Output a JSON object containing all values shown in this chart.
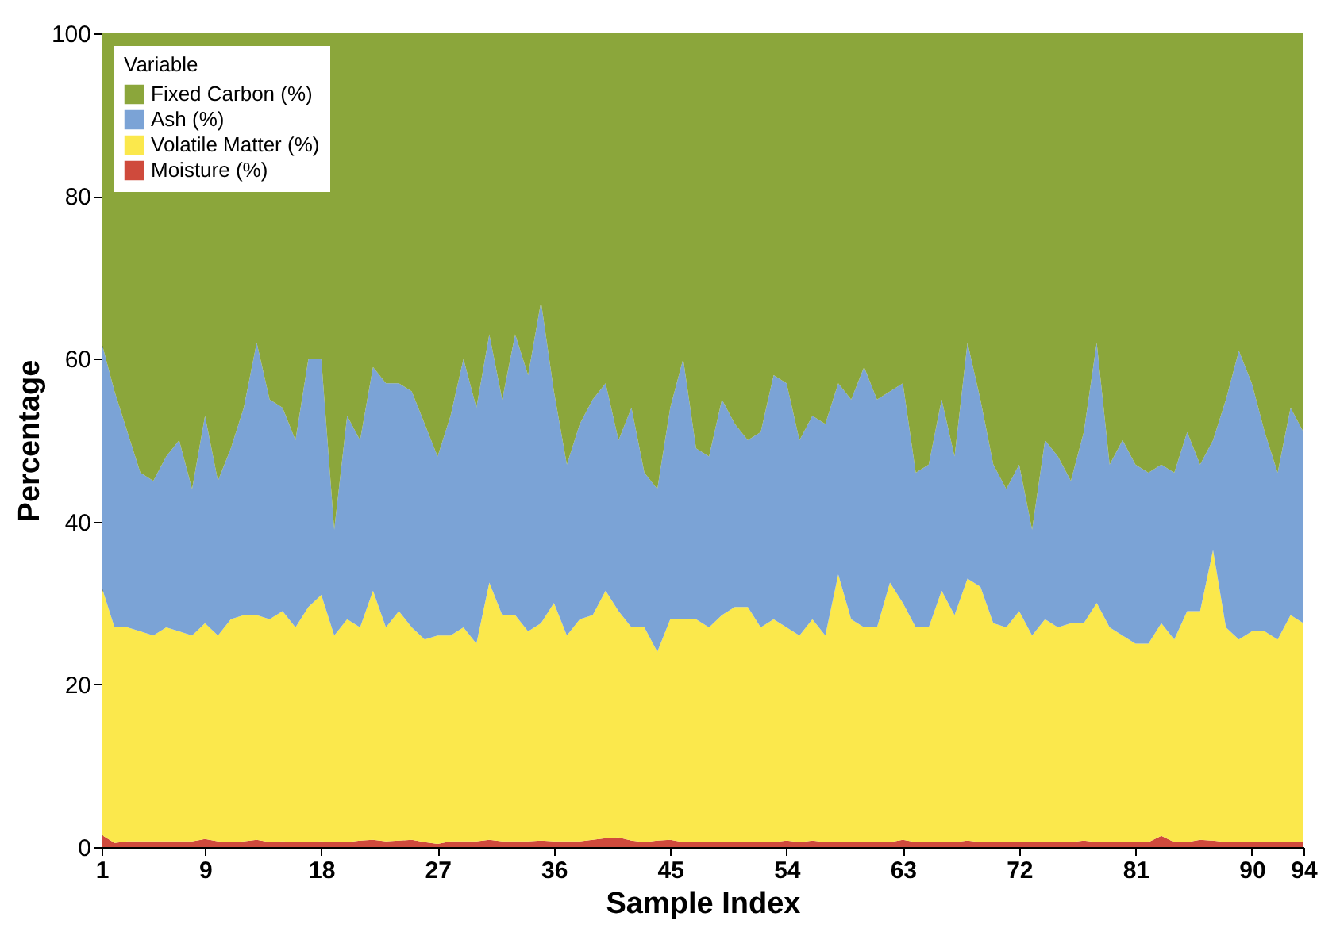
{
  "chart_data": {
    "type": "area",
    "stacked": true,
    "xlabel": "Sample Index",
    "ylabel": "Percentage",
    "legend_title": "Variable",
    "legend": "top left",
    "x": [
      1,
      2,
      3,
      4,
      5,
      6,
      7,
      8,
      9,
      10,
      11,
      12,
      13,
      14,
      15,
      16,
      17,
      18,
      19,
      20,
      21,
      22,
      23,
      24,
      25,
      26,
      27,
      28,
      29,
      30,
      31,
      32,
      33,
      34,
      35,
      36,
      37,
      38,
      39,
      40,
      41,
      42,
      43,
      44,
      45,
      46,
      47,
      48,
      49,
      50,
      51,
      52,
      53,
      54,
      55,
      56,
      57,
      58,
      59,
      60,
      61,
      62,
      63,
      64,
      65,
      66,
      67,
      68,
      69,
      70,
      71,
      72,
      73,
      74,
      75,
      76,
      77,
      78,
      79,
      80,
      81,
      82,
      83,
      84,
      85,
      86,
      87,
      88,
      89,
      90,
      91,
      92,
      93,
      94
    ],
    "xlim": [
      1,
      94
    ],
    "xticks": [
      1,
      9,
      18,
      27,
      36,
      45,
      54,
      63,
      72,
      81,
      90,
      94
    ],
    "ylim": [
      0,
      100
    ],
    "yticks": [
      0,
      20,
      40,
      60,
      80,
      100
    ],
    "series": [
      {
        "name": "Moisture (%)",
        "color": "#cf4a3c",
        "values": [
          1.5,
          0.5,
          0.7,
          0.7,
          0.7,
          0.7,
          0.7,
          0.7,
          1.0,
          0.7,
          0.6,
          0.7,
          0.9,
          0.6,
          0.7,
          0.6,
          0.6,
          0.7,
          0.6,
          0.6,
          0.8,
          0.9,
          0.7,
          0.8,
          0.9,
          0.6,
          0.4,
          0.7,
          0.7,
          0.7,
          0.9,
          0.7,
          0.7,
          0.7,
          0.8,
          0.7,
          0.7,
          0.7,
          0.9,
          1.1,
          1.2,
          0.8,
          0.6,
          0.8,
          0.9,
          0.6,
          0.6,
          0.6,
          0.6,
          0.6,
          0.6,
          0.6,
          0.6,
          0.8,
          0.6,
          0.8,
          0.6,
          0.6,
          0.6,
          0.6,
          0.6,
          0.6,
          0.9,
          0.6,
          0.6,
          0.6,
          0.6,
          0.8,
          0.6,
          0.6,
          0.6,
          0.6,
          0.6,
          0.6,
          0.6,
          0.6,
          0.8,
          0.6,
          0.6,
          0.6,
          0.6,
          0.6,
          1.4,
          0.6,
          0.6,
          0.9,
          0.8,
          0.6,
          0.6,
          0.6,
          0.6,
          0.6,
          0.6,
          0.6
        ]
      },
      {
        "name": "Volatile Matter (%)",
        "color": "#fbe84c",
        "values": [
          30.5,
          26.5,
          26.3,
          25.8,
          25.3,
          26.3,
          25.8,
          25.3,
          26.5,
          25.3,
          27.4,
          27.8,
          27.6,
          27.4,
          28.3,
          26.4,
          28.9,
          30.3,
          25.4,
          27.4,
          26.2,
          30.6,
          26.3,
          28.2,
          26.1,
          24.9,
          25.6,
          25.3,
          26.3,
          24.3,
          31.6,
          27.8,
          27.8,
          25.8,
          26.7,
          29.3,
          25.3,
          27.3,
          27.6,
          30.4,
          27.8,
          26.2,
          26.4,
          23.2,
          27.1,
          27.4,
          27.4,
          26.4,
          27.9,
          28.9,
          28.9,
          26.4,
          27.4,
          26.2,
          25.4,
          27.2,
          25.4,
          32.9,
          27.4,
          26.4,
          26.4,
          31.9,
          29.1,
          26.4,
          26.4,
          30.9,
          27.9,
          32.2,
          31.4,
          26.9,
          26.4,
          28.4,
          25.4,
          27.4,
          26.4,
          26.9,
          26.7,
          29.4,
          26.4,
          25.4,
          24.4,
          24.4,
          26.1,
          24.9,
          28.4,
          28.1,
          35.7,
          26.4,
          24.9,
          25.9,
          25.9,
          24.9,
          27.9,
          26.9
        ]
      },
      {
        "name": "Ash (%)",
        "color": "#7ba3d6",
        "values": [
          30,
          29,
          24,
          19.5,
          19,
          21,
          23.5,
          18,
          25.5,
          19,
          21,
          25.5,
          33.5,
          27,
          25,
          23,
          30.5,
          29,
          13,
          25,
          23,
          27.5,
          30,
          28,
          29,
          26.5,
          22,
          27,
          33,
          29,
          30.5,
          26.5,
          34.5,
          31.5,
          39.5,
          26,
          21,
          24,
          26.5,
          25.5,
          21,
          27,
          19,
          20,
          26,
          32,
          21,
          21,
          26.5,
          22.5,
          20.5,
          24,
          30,
          30,
          24,
          25,
          26,
          23.5,
          27,
          32,
          28,
          23.5,
          27,
          19,
          20,
          23.5,
          19.5,
          29,
          23,
          19.5,
          17,
          18,
          13,
          22,
          21,
          17.5,
          23.5,
          32,
          20,
          24,
          22,
          21,
          19.5,
          20.5,
          22,
          18,
          13.5,
          28,
          35.5,
          30.5,
          24.5,
          20.5,
          25.5,
          23.5
        ]
      },
      {
        "name": "Fixed Carbon (%)",
        "color": "#8ba63b",
        "values": [
          38,
          44,
          49,
          54,
          55,
          52,
          50,
          56,
          47,
          55,
          51,
          46,
          38,
          45,
          46,
          50,
          40,
          40,
          61,
          47,
          50,
          41,
          43,
          43,
          44,
          48,
          52,
          47,
          40,
          46,
          37,
          45,
          37,
          42,
          33,
          44,
          53,
          48,
          45,
          43,
          50,
          46,
          54,
          56,
          46,
          40,
          51,
          52,
          45,
          48,
          50,
          49,
          42,
          43,
          50,
          47,
          48,
          43,
          45,
          41,
          45,
          44,
          43,
          54,
          53,
          45,
          52,
          38,
          45,
          53,
          56,
          53,
          61,
          50,
          52,
          55,
          49,
          38,
          53,
          50,
          53,
          54,
          53,
          54,
          49,
          53,
          50,
          45,
          39,
          43,
          49,
          54,
          46,
          49
        ]
      }
    ]
  }
}
